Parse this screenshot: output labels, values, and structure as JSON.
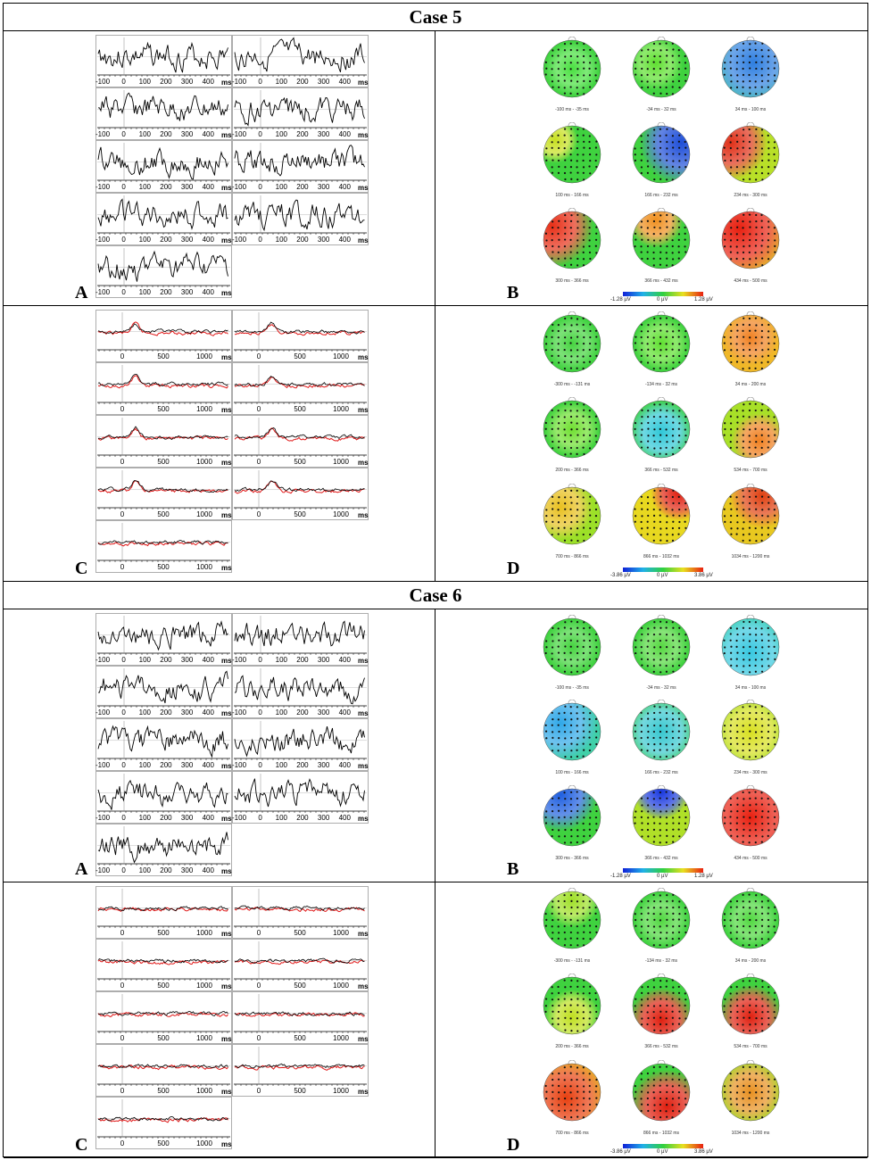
{
  "cases": [
    {
      "title": "Case 5",
      "erp": {
        "letter_left": "A",
        "letter_right": "B",
        "ticks": [
          "-100",
          "0",
          "100",
          "200",
          "300",
          "400"
        ],
        "unit": "ms",
        "map_labels": [
          "-100 ms - -35 ms",
          "-34 ms - 32 ms",
          "34 ms - 100 ms",
          "100 ms - 166 ms",
          "166 ms - 232 ms",
          "234 ms - 300 ms",
          "300 ms - 366 ms",
          "366 ms - 432 ms",
          "434 ms - 500 ms"
        ],
        "scale": {
          "min": "-1.28 µV",
          "mid": "0 µV",
          "max": "1.28 µV"
        },
        "maps": [
          {
            "base": "#3fd23f",
            "blob": "#49e040",
            "bx": 0.5,
            "by": 0.5,
            "br": 0.3
          },
          {
            "base": "#3fd23f",
            "blob": "#5fe030",
            "bx": 0.4,
            "by": 0.4,
            "br": 0.3
          },
          {
            "base": "#40c8b0",
            "blob": "#2f7fe0",
            "bx": 0.55,
            "by": 0.4,
            "br": 0.45
          },
          {
            "base": "#3fd23f",
            "blob": "#c8e020",
            "bx": 0.2,
            "by": 0.25,
            "br": 0.25
          },
          {
            "base": "#3fd23f",
            "blob": "#1f4fd8",
            "bx": 0.85,
            "by": 0.3,
            "br": 0.45
          },
          {
            "base": "#b8e028",
            "blob": "#e03018",
            "bx": 0.15,
            "by": 0.3,
            "br": 0.4
          },
          {
            "base": "#3fd23f",
            "blob": "#e83018",
            "bx": 0.15,
            "by": 0.25,
            "br": 0.45
          },
          {
            "base": "#3fd23f",
            "blob": "#f09020",
            "bx": 0.4,
            "by": 0.15,
            "br": 0.3
          },
          {
            "base": "#e0d020",
            "blob": "#e82010",
            "bx": 0.3,
            "by": 0.3,
            "br": 0.55
          }
        ]
      },
      "trend": {
        "letter_left": "C",
        "letter_right": "D",
        "ticks": [
          "0",
          "500",
          "1000"
        ],
        "unit": "ms",
        "map_labels": [
          "-300 ms - -131 ms",
          "-134 ms - 32 ms",
          "34 ms - 200 ms",
          "200 ms - 366 ms",
          "366 ms - 532 ms",
          "534 ms - 700 ms",
          "700 ms - 866 ms",
          "866 ms - 1032 ms",
          "1034 ms - 1200 ms"
        ],
        "scale": {
          "min": "-3.86 µV",
          "mid": "0 µV",
          "max": "3.86 µV"
        },
        "maps": [
          {
            "base": "#3fd23f",
            "blob": "#45d43f",
            "bx": 0.5,
            "by": 0.5,
            "br": 0.3
          },
          {
            "base": "#3fd23f",
            "blob": "#5fe030",
            "bx": 0.5,
            "by": 0.5,
            "br": 0.3
          },
          {
            "base": "#f0b828",
            "blob": "#f08020",
            "bx": 0.5,
            "by": 0.4,
            "br": 0.3
          },
          {
            "base": "#3fd23f",
            "blob": "#6fe030",
            "bx": 0.5,
            "by": 0.5,
            "br": 0.3
          },
          {
            "base": "#3fd23f",
            "blob": "#30c8d8",
            "bx": 0.5,
            "by": 0.55,
            "br": 0.35
          },
          {
            "base": "#a8e028",
            "blob": "#f08020",
            "bx": 0.65,
            "by": 0.7,
            "br": 0.3
          },
          {
            "base": "#9ce028",
            "blob": "#e8c020",
            "bx": 0.3,
            "by": 0.35,
            "br": 0.35
          },
          {
            "base": "#e8d820",
            "blob": "#e02010",
            "bx": 0.8,
            "by": 0.1,
            "br": 0.3
          },
          {
            "base": "#e8c820",
            "blob": "#e04010",
            "bx": 0.7,
            "by": 0.15,
            "br": 0.35
          }
        ]
      }
    },
    {
      "title": "Case 6",
      "erp": {
        "letter_left": "A",
        "letter_right": "B",
        "ticks": [
          "-100",
          "0",
          "100",
          "200",
          "300",
          "400"
        ],
        "unit": "ms",
        "map_labels": [
          "-100 ms - -35 ms",
          "-34 ms - 32 ms",
          "34 ms - 100 ms",
          "100 ms - 166 ms",
          "166 ms - 232 ms",
          "234 ms - 300 ms",
          "300 ms - 366 ms",
          "366 ms - 432 ms",
          "434 ms - 500 ms"
        ],
        "scale": {
          "min": "-1.28 µV",
          "mid": "0 µV",
          "max": "1.28 µV"
        },
        "maps": [
          {
            "base": "#3fd23f",
            "blob": "#45d43f",
            "bx": 0.5,
            "by": 0.5,
            "br": 0.3
          },
          {
            "base": "#3fd23f",
            "blob": "#55d840",
            "bx": 0.5,
            "by": 0.5,
            "br": 0.3
          },
          {
            "base": "#30d0a0",
            "blob": "#38c8e0",
            "bx": 0.5,
            "by": 0.6,
            "br": 0.45
          },
          {
            "base": "#40d0a8",
            "blob": "#30a8e8",
            "bx": 0.3,
            "by": 0.35,
            "br": 0.4
          },
          {
            "base": "#3fd23f",
            "blob": "#38c8d0",
            "bx": 0.5,
            "by": 0.5,
            "br": 0.4
          },
          {
            "base": "#a0e028",
            "blob": "#d8e020",
            "bx": 0.5,
            "by": 0.5,
            "br": 0.4
          },
          {
            "base": "#3fd23f",
            "blob": "#2060e0",
            "bx": 0.3,
            "by": 0.1,
            "br": 0.4
          },
          {
            "base": "#b0e028",
            "blob": "#1838e0",
            "bx": 0.5,
            "by": 0.05,
            "br": 0.3
          },
          {
            "base": "#e02010",
            "blob": "#e82010",
            "bx": 0.5,
            "by": 0.5,
            "br": 0.5
          }
        ]
      },
      "trend": {
        "letter_left": "C",
        "letter_right": "D",
        "ticks": [
          "0",
          "500",
          "1000"
        ],
        "unit": "ms",
        "map_labels": [
          "-300 ms - -131 ms",
          "-134 ms - 32 ms",
          "34 ms - 200 ms",
          "200 ms - 366 ms",
          "366 ms - 532 ms",
          "534 ms - 700 ms",
          "700 ms - 866 ms",
          "866 ms - 1032 ms",
          "1034 ms - 1200 ms"
        ],
        "scale": {
          "min": "-3.86 µV",
          "mid": "0 µV",
          "max": "3.86 µV"
        },
        "maps": [
          {
            "base": "#3fd23f",
            "blob": "#a0e028",
            "bx": 0.5,
            "by": 0.15,
            "br": 0.3
          },
          {
            "base": "#3fd23f",
            "blob": "#50d840",
            "bx": 0.5,
            "by": 0.5,
            "br": 0.3
          },
          {
            "base": "#3fd23f",
            "blob": "#50d840",
            "bx": 0.5,
            "by": 0.5,
            "br": 0.3
          },
          {
            "base": "#3fd23f",
            "blob": "#c0e020",
            "bx": 0.5,
            "by": 0.7,
            "br": 0.3
          },
          {
            "base": "#3fd23f",
            "blob": "#e02010",
            "bx": 0.5,
            "by": 0.75,
            "br": 0.35
          },
          {
            "base": "#3fd23f",
            "blob": "#e02010",
            "bx": 0.5,
            "by": 0.7,
            "br": 0.35
          },
          {
            "base": "#e8c020",
            "blob": "#e84010",
            "bx": 0.4,
            "by": 0.6,
            "br": 0.45
          },
          {
            "base": "#3fd23f",
            "blob": "#e02010",
            "bx": 0.6,
            "by": 0.75,
            "br": 0.4
          },
          {
            "base": "#a0e028",
            "blob": "#e89020",
            "bx": 0.5,
            "by": 0.5,
            "br": 0.35
          }
        ]
      }
    }
  ]
}
